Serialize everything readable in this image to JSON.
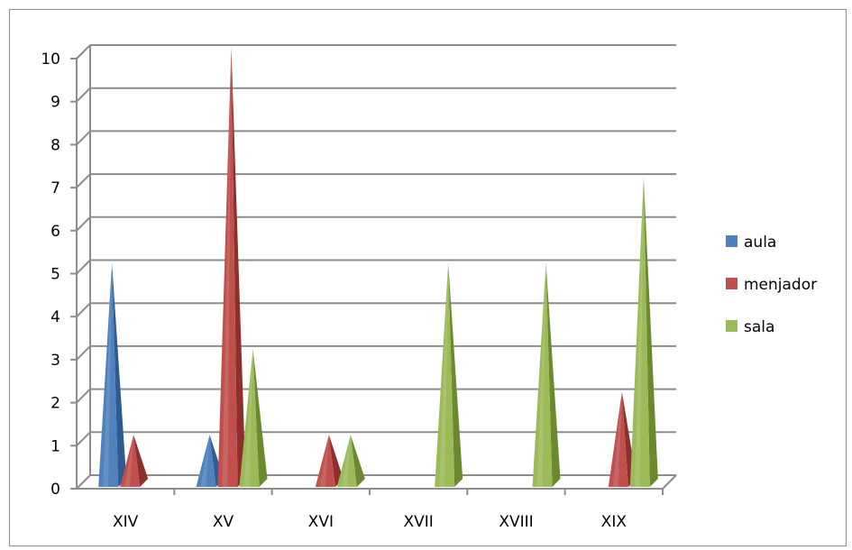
{
  "chart_data": {
    "type": "bar",
    "style": "3d-cone",
    "categories": [
      "XIV",
      "XV",
      "XVI",
      "XVII",
      "XVIII",
      "XIX"
    ],
    "series": [
      {
        "name": "aula",
        "values": [
          5,
          1,
          0,
          0,
          0,
          0
        ],
        "color": "#4f81bd",
        "shade": "#2f5a93"
      },
      {
        "name": "menjador",
        "values": [
          1,
          10,
          1,
          0,
          0,
          2
        ],
        "color": "#c0504d",
        "shade": "#8e2f2c"
      },
      {
        "name": "sala",
        "values": [
          0,
          3,
          1,
          5,
          5,
          7
        ],
        "color": "#9bbb59",
        "shade": "#6b8a30"
      }
    ],
    "y_ticks": [
      "0",
      "1",
      "2",
      "3",
      "4",
      "5",
      "6",
      "7",
      "8",
      "9",
      "10"
    ],
    "ylim": [
      0,
      10
    ],
    "grid": true,
    "legend_position": "right",
    "title": "",
    "xlabel": "",
    "ylabel": ""
  }
}
